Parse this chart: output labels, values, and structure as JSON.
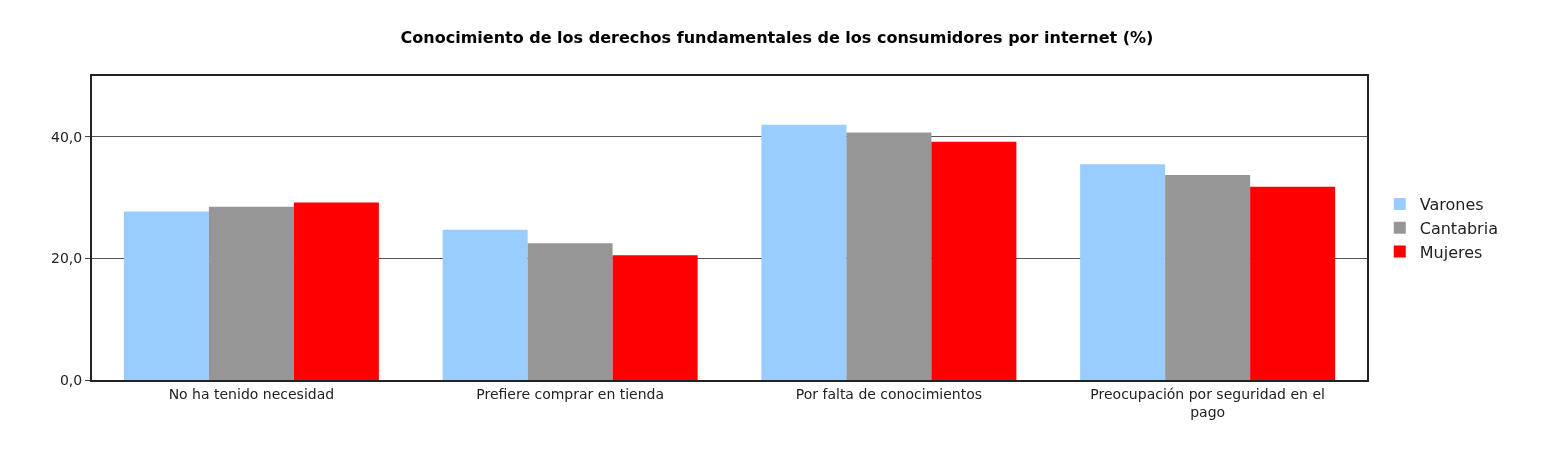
{
  "chart_data": {
    "type": "bar",
    "title": "Conocimiento de los derechos fundamentales de los consumidores por internet (%)",
    "categories": [
      "No ha tenido necesidad",
      "Prefiere comprar en tienda",
      "Por falta de conocimientos",
      "Preocupación por seguridad en el pago"
    ],
    "series": [
      {
        "name": "Varones",
        "color": "#99ccff",
        "values": [
          27.7,
          24.7,
          42.0,
          35.5
        ]
      },
      {
        "name": "Cantabria",
        "color": "#969696",
        "values": [
          28.5,
          22.5,
          40.7,
          33.7
        ]
      },
      {
        "name": "Mujeres",
        "color": "#ff0000",
        "values": [
          29.2,
          20.5,
          39.2,
          31.8
        ]
      }
    ],
    "ylim": [
      0,
      50
    ],
    "yticks": [
      {
        "value": 0,
        "label": "0,0"
      },
      {
        "value": 20,
        "label": "20,0"
      },
      {
        "value": 40,
        "label": "40,0"
      }
    ],
    "grid": "y",
    "legend": "right"
  }
}
